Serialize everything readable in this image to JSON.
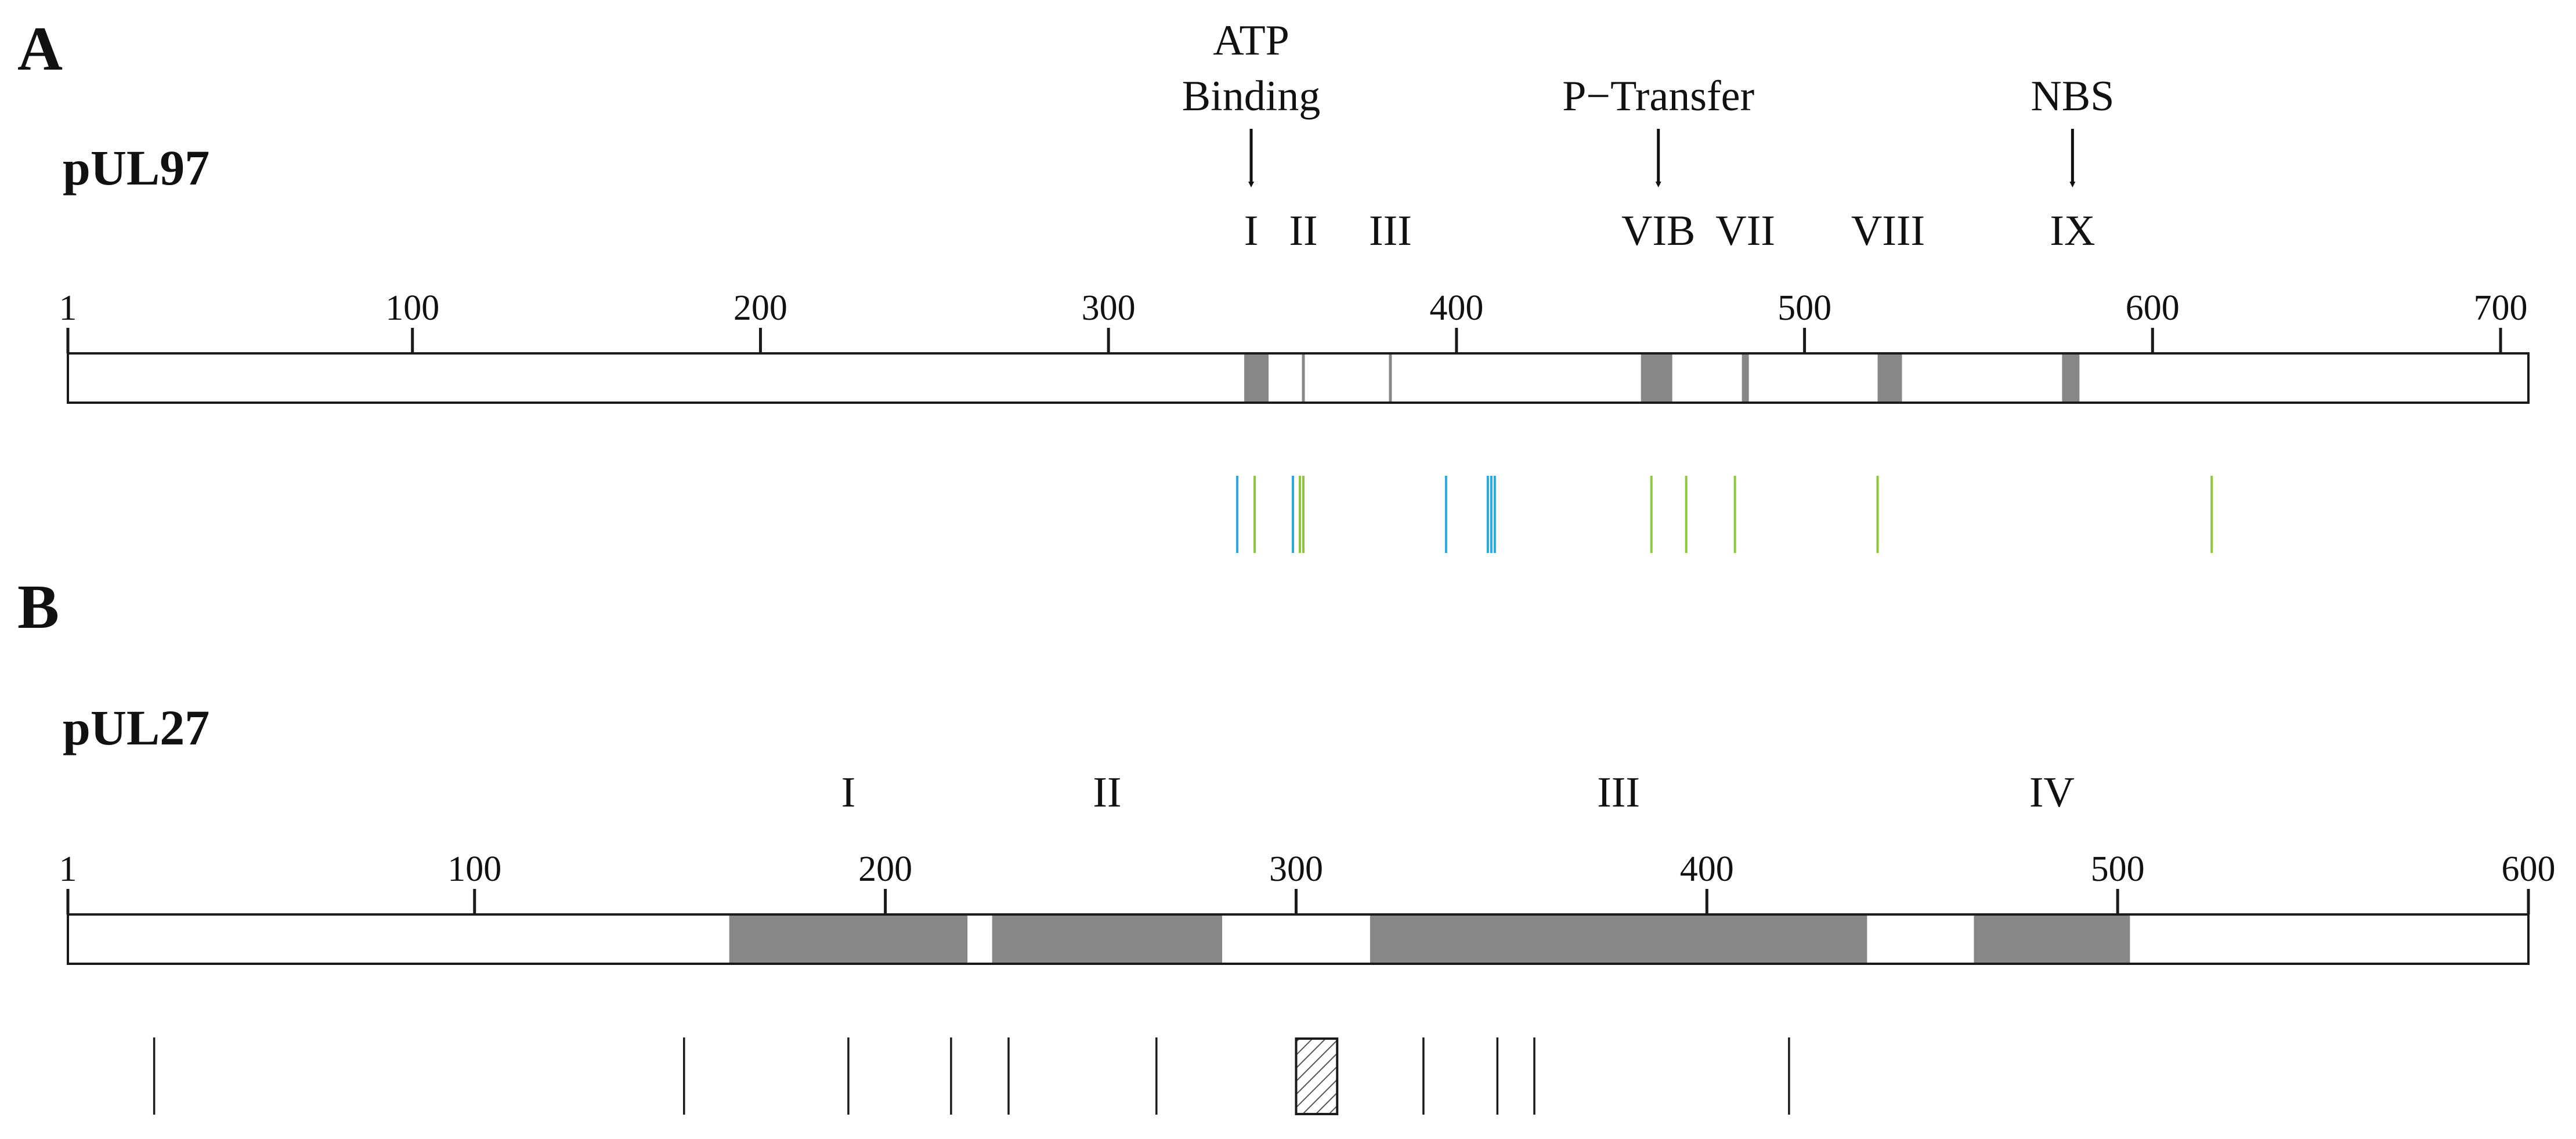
{
  "colors": {
    "domain_fill": "#878787",
    "blue_mark": "#29a9e0",
    "green_mark": "#8dc63f",
    "black_mark": "#1a1a1a",
    "outline": "#1a1a1a"
  },
  "panel_a": {
    "letter": "A",
    "protein": "pUL97",
    "length": 707,
    "ticks": [
      {
        "value": 1,
        "label": "1"
      },
      {
        "value": 100,
        "label": "100"
      },
      {
        "value": 200,
        "label": "200"
      },
      {
        "value": 300,
        "label": "300"
      },
      {
        "value": 400,
        "label": "400"
      },
      {
        "value": 500,
        "label": "500"
      },
      {
        "value": 600,
        "label": "600"
      },
      {
        "value": 700,
        "label": "700"
      }
    ],
    "annotations": [
      {
        "lines": [
          "ATP",
          "Binding"
        ],
        "position": 341
      },
      {
        "lines": [
          "P−Transfer"
        ],
        "position": 458
      },
      {
        "lines": [
          "NBS"
        ],
        "position": 577
      }
    ],
    "subdomains": [
      {
        "label": "I",
        "position": 341
      },
      {
        "label": "II",
        "position": 356
      },
      {
        "label": "III",
        "position": 381
      },
      {
        "label": "VIB",
        "position": 458
      },
      {
        "label": "VII",
        "position": 483
      },
      {
        "label": "VIII",
        "position": 524
      },
      {
        "label": "IX",
        "position": 577
      }
    ],
    "domains": [
      {
        "name": "subdomain-I",
        "start": 339,
        "end": 346,
        "style": "block"
      },
      {
        "name": "subdomain-II",
        "start": 356,
        "end": 356,
        "style": "line"
      },
      {
        "name": "subdomain-III",
        "start": 381,
        "end": 381,
        "style": "line"
      },
      {
        "name": "subdomain-VIB",
        "start": 453,
        "end": 462,
        "style": "block"
      },
      {
        "name": "subdomain-VII",
        "start": 482,
        "end": 484,
        "style": "block"
      },
      {
        "name": "subdomain-VIII",
        "start": 521,
        "end": 528,
        "style": "block"
      },
      {
        "name": "subdomain-IX",
        "start": 574,
        "end": 579,
        "style": "block"
      }
    ],
    "mutations": [
      {
        "position": 337,
        "color": "blue"
      },
      {
        "position": 342,
        "color": "green"
      },
      {
        "position": 353,
        "color": "blue"
      },
      {
        "position": 355,
        "color": "green"
      },
      {
        "position": 356,
        "color": "green"
      },
      {
        "position": 397,
        "color": "blue"
      },
      {
        "position": 409,
        "color": "blue"
      },
      {
        "position": 410,
        "color": "blue"
      },
      {
        "position": 411,
        "color": "blue"
      },
      {
        "position": 456,
        "color": "green"
      },
      {
        "position": 466,
        "color": "green"
      },
      {
        "position": 480,
        "color": "green"
      },
      {
        "position": 521,
        "color": "green"
      },
      {
        "position": 617,
        "color": "green"
      }
    ]
  },
  "panel_b": {
    "letter": "B",
    "protein": "pUL27",
    "length": 600,
    "ticks": [
      {
        "value": 1,
        "label": "1"
      },
      {
        "value": 100,
        "label": "100"
      },
      {
        "value": 200,
        "label": "200"
      },
      {
        "value": 300,
        "label": "300"
      },
      {
        "value": 400,
        "label": "400"
      },
      {
        "value": 500,
        "label": "500"
      },
      {
        "value": 600,
        "label": "600"
      }
    ],
    "regions": [
      {
        "label": "I",
        "start": 162,
        "end": 220
      },
      {
        "label": "II",
        "start": 226,
        "end": 282
      },
      {
        "label": "III",
        "start": 318,
        "end": 439
      },
      {
        "label": "IV",
        "start": 465,
        "end": 503
      }
    ],
    "mutations": [
      22,
      151,
      191,
      216,
      230,
      266,
      331,
      349,
      358,
      420
    ],
    "deletion": {
      "start": 300,
      "end": 310
    }
  }
}
